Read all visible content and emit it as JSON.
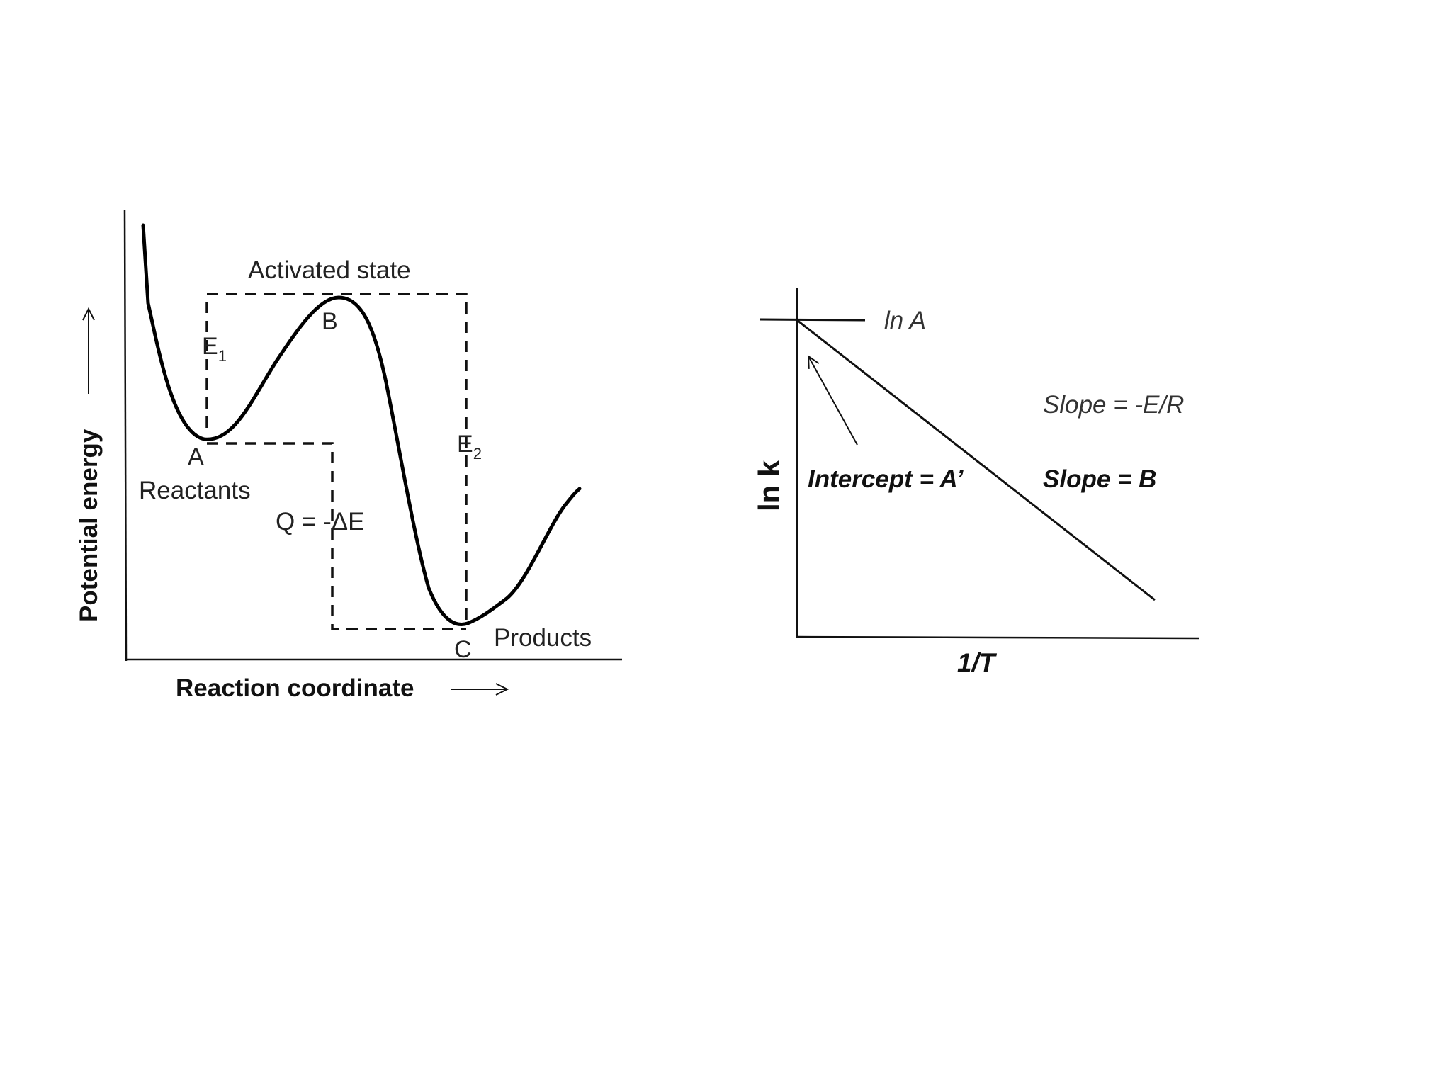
{
  "energy_diagram": {
    "y_axis_label": "Potential energy",
    "x_axis_label": "Reaction coordinate",
    "activated_state_label": "Activated state",
    "point_a": "A",
    "point_b": "B",
    "point_c": "C",
    "e1_main": "E",
    "e1_sub": "1",
    "e2_main": "E",
    "e2_sub": "2",
    "reactants_label": "Reactants",
    "products_label": "Products",
    "q_label": "Q = -ΔE"
  },
  "arrhenius_plot": {
    "y_axis_label": "ln k",
    "x_axis_label": "1/T",
    "ln_a_label": "ln A",
    "slope_label_1": "Slope = -E/R",
    "slope_label_2": "Slope = B",
    "intercept_label": "Intercept = A’"
  }
}
